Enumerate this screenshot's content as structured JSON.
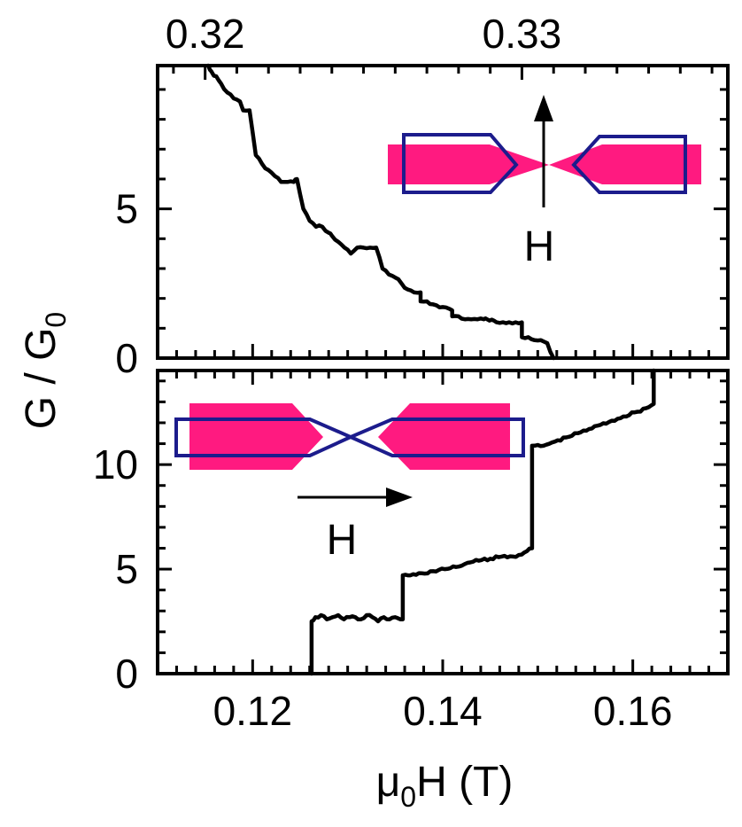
{
  "chart_data": [
    {
      "type": "line",
      "panel": "top",
      "title": "",
      "xlabel_top": "",
      "ylabel": "G / G0",
      "xlim": [
        0.3185,
        0.3365
      ],
      "ylim": [
        0,
        9.8
      ],
      "top_ticks": [
        0.32,
        0.33
      ],
      "top_tick_labels": [
        "0.32",
        "0.33"
      ],
      "y_ticks": [
        0,
        5
      ],
      "y_tick_labels": [
        "0",
        "5"
      ],
      "series": [
        {
          "x": [
            0.3201,
            0.3202,
            0.3205,
            0.3207,
            0.3209,
            0.3211,
            0.3212,
            0.3214,
            0.3216,
            0.3218,
            0.322,
            0.3222,
            0.3224,
            0.3226,
            0.3228,
            0.3229,
            0.3231,
            0.3233,
            0.3235,
            0.3237,
            0.3239,
            0.324,
            0.3242,
            0.3244,
            0.3246,
            0.3248,
            0.325,
            0.3252,
            0.3254,
            0.3256,
            0.3258,
            0.326,
            0.3262,
            0.3264,
            0.3266,
            0.3268,
            0.3268,
            0.327,
            0.3272,
            0.3274,
            0.3276,
            0.3278,
            0.3278,
            0.328,
            0.3282,
            0.3284,
            0.3286,
            0.3288,
            0.3289,
            0.3292,
            0.3294,
            0.3296,
            0.3298,
            0.33,
            0.33,
            0.3302,
            0.3304,
            0.3306,
            0.3308,
            0.331
          ],
          "values": [
            9.9,
            9.6,
            9.2,
            8.9,
            8.7,
            8.6,
            8.3,
            8.3,
            6.8,
            6.5,
            6.3,
            6.1,
            5.9,
            5.9,
            5.9,
            6.0,
            5.0,
            4.6,
            4.4,
            4.4,
            4.2,
            4.1,
            3.9,
            3.7,
            3.5,
            3.7,
            3.7,
            3.7,
            3.7,
            3.0,
            2.8,
            2.7,
            2.5,
            2.3,
            2.2,
            2.2,
            1.9,
            1.9,
            1.8,
            1.7,
            1.7,
            1.6,
            1.4,
            1.4,
            1.3,
            1.3,
            1.3,
            1.3,
            1.3,
            1.2,
            1.2,
            1.2,
            1.2,
            1.2,
            0.7,
            0.7,
            0.6,
            0.6,
            0.5,
            0.0
          ]
        }
      ],
      "inset": {
        "field_label": "H"
      }
    },
    {
      "type": "line",
      "panel": "bottom",
      "title": "",
      "xlabel": "μ0H (T)",
      "ylabel": "G / G0",
      "xlim": [
        0.11,
        0.17
      ],
      "ylim": [
        0,
        14.5
      ],
      "x_ticks": [
        0.12,
        0.14,
        0.16
      ],
      "x_tick_labels": [
        "0.12",
        "0.14",
        "0.16"
      ],
      "y_ticks": [
        0,
        5,
        10
      ],
      "y_tick_labels": [
        "0",
        "5",
        "10"
      ],
      "series": [
        {
          "x": [
            0.1262,
            0.1262,
            0.1266,
            0.1272,
            0.1278,
            0.1284,
            0.129,
            0.1296,
            0.1302,
            0.1308,
            0.1314,
            0.132,
            0.1326,
            0.1332,
            0.1338,
            0.1344,
            0.135,
            0.1358,
            0.1358,
            0.1366,
            0.1378,
            0.139,
            0.1402,
            0.1414,
            0.1426,
            0.1438,
            0.145,
            0.1462,
            0.1474,
            0.1486,
            0.1494,
            0.1494,
            0.1506,
            0.1518,
            0.153,
            0.1542,
            0.1554,
            0.1566,
            0.1578,
            0.159,
            0.1602,
            0.1614,
            0.1622,
            0.1622
          ],
          "values": [
            0.0,
            2.5,
            2.7,
            2.8,
            2.6,
            2.7,
            2.8,
            2.6,
            2.7,
            2.7,
            2.6,
            2.8,
            2.7,
            2.5,
            2.7,
            2.6,
            2.7,
            2.6,
            4.7,
            4.7,
            4.8,
            4.9,
            5.0,
            5.1,
            5.3,
            5.4,
            5.5,
            5.6,
            5.6,
            5.8,
            6.0,
            10.9,
            10.9,
            11.1,
            11.3,
            11.5,
            11.7,
            11.9,
            12.1,
            12.3,
            12.5,
            12.7,
            12.9,
            14.5
          ]
        }
      ],
      "inset": {
        "field_label": "H"
      }
    }
  ]
}
